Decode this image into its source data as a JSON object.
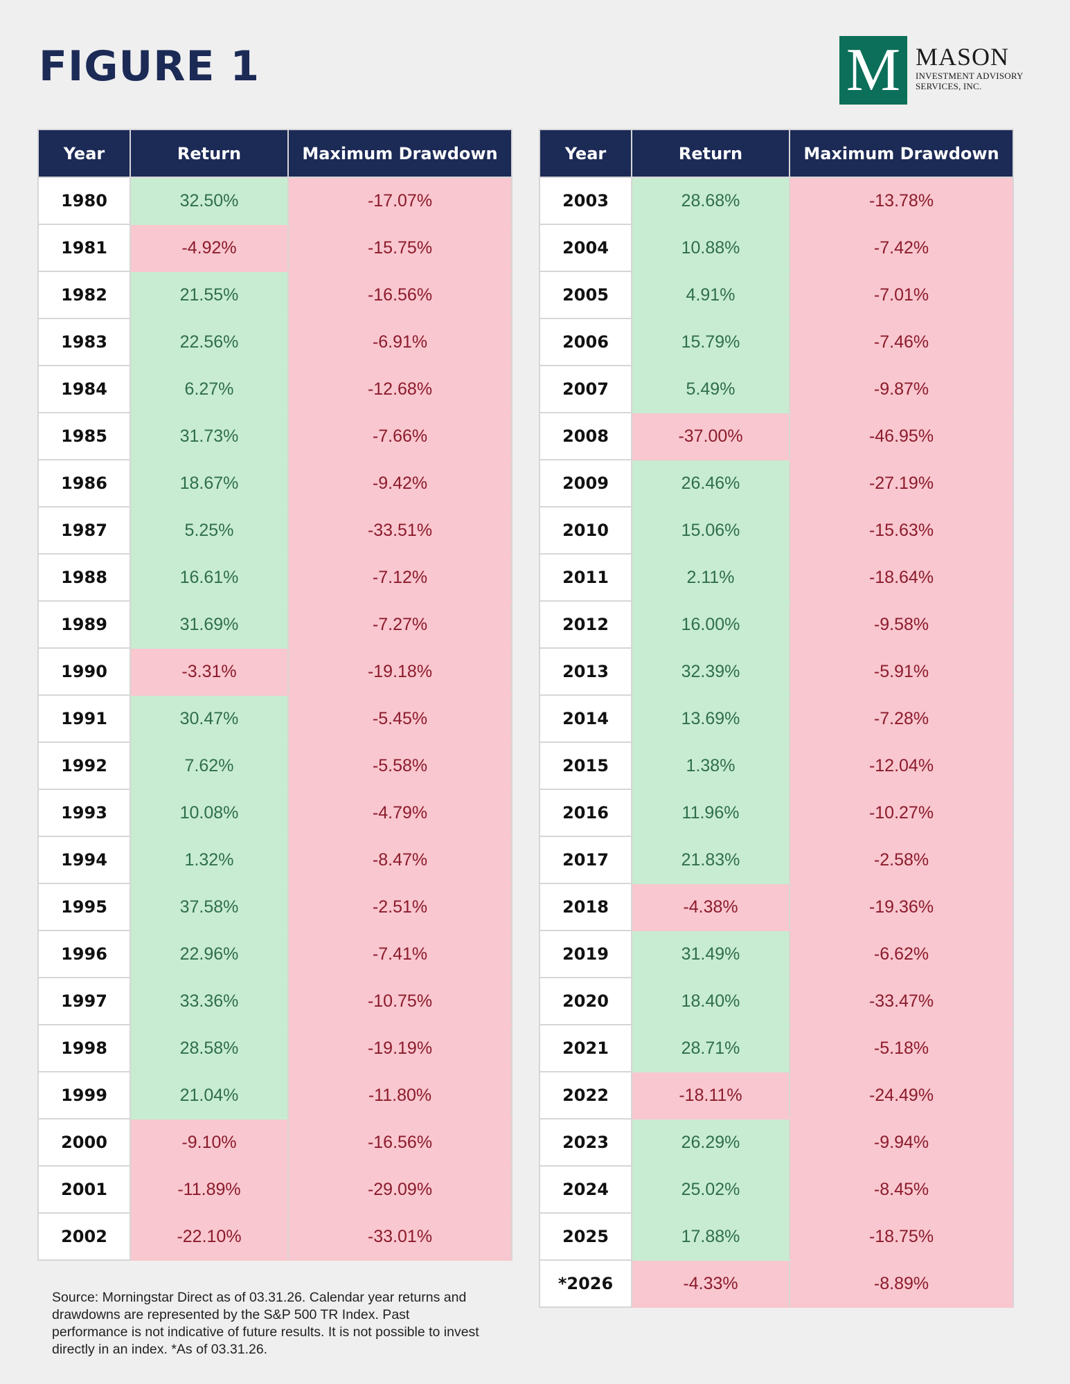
{
  "page": {
    "title": "FIGURE 1",
    "footnote": "Source: Morningstar Direct as of 03.31.26. Calendar year returns and drawdowns are represented by the S&P 500 TR Index. Past performance is not indicative of future results. It is not possible to invest directly in an index. *As of 03.31.26."
  },
  "logo": {
    "mark": "M",
    "name": "MASON",
    "subtitle": "INVESTMENT ADVISORY SERVICES, INC.",
    "brand_color": "#0c6f59"
  },
  "colors": {
    "header_bg": "#1c2a56",
    "positive_bg": "#c8ecd1",
    "negative_bg": "#f9c7cf",
    "positive_text": "#2f6e4b",
    "negative_text": "#8b1b2c"
  },
  "chart_data": {
    "type": "table",
    "columns": [
      "Year",
      "Return",
      "Maximum Drawdown"
    ],
    "tables": [
      {
        "rows": [
          [
            "1980",
            "32.50%",
            "-17.07%"
          ],
          [
            "1981",
            "-4.92%",
            "-15.75%"
          ],
          [
            "1982",
            "21.55%",
            "-16.56%"
          ],
          [
            "1983",
            "22.56%",
            "-6.91%"
          ],
          [
            "1984",
            "6.27%",
            "-12.68%"
          ],
          [
            "1985",
            "31.73%",
            "-7.66%"
          ],
          [
            "1986",
            "18.67%",
            "-9.42%"
          ],
          [
            "1987",
            "5.25%",
            "-33.51%"
          ],
          [
            "1988",
            "16.61%",
            "-7.12%"
          ],
          [
            "1989",
            "31.69%",
            "-7.27%"
          ],
          [
            "1990",
            "-3.31%",
            "-19.18%"
          ],
          [
            "1991",
            "30.47%",
            "-5.45%"
          ],
          [
            "1992",
            "7.62%",
            "-5.58%"
          ],
          [
            "1993",
            "10.08%",
            "-4.79%"
          ],
          [
            "1994",
            "1.32%",
            "-8.47%"
          ],
          [
            "1995",
            "37.58%",
            "-2.51%"
          ],
          [
            "1996",
            "22.96%",
            "-7.41%"
          ],
          [
            "1997",
            "33.36%",
            "-10.75%"
          ],
          [
            "1998",
            "28.58%",
            "-19.19%"
          ],
          [
            "1999",
            "21.04%",
            "-11.80%"
          ],
          [
            "2000",
            "-9.10%",
            "-16.56%"
          ],
          [
            "2001",
            "-11.89%",
            "-29.09%"
          ],
          [
            "2002",
            "-22.10%",
            "-33.01%"
          ]
        ]
      },
      {
        "rows": [
          [
            "2003",
            "28.68%",
            "-13.78%"
          ],
          [
            "2004",
            "10.88%",
            "-7.42%"
          ],
          [
            "2005",
            "4.91%",
            "-7.01%"
          ],
          [
            "2006",
            "15.79%",
            "-7.46%"
          ],
          [
            "2007",
            "5.49%",
            "-9.87%"
          ],
          [
            "2008",
            "-37.00%",
            "-46.95%"
          ],
          [
            "2009",
            "26.46%",
            "-27.19%"
          ],
          [
            "2010",
            "15.06%",
            "-15.63%"
          ],
          [
            "2011",
            "2.11%",
            "-18.64%"
          ],
          [
            "2012",
            "16.00%",
            "-9.58%"
          ],
          [
            "2013",
            "32.39%",
            "-5.91%"
          ],
          [
            "2014",
            "13.69%",
            "-7.28%"
          ],
          [
            "2015",
            "1.38%",
            "-12.04%"
          ],
          [
            "2016",
            "11.96%",
            "-10.27%"
          ],
          [
            "2017",
            "21.83%",
            "-2.58%"
          ],
          [
            "2018",
            "-4.38%",
            "-19.36%"
          ],
          [
            "2019",
            "31.49%",
            "-6.62%"
          ],
          [
            "2020",
            "18.40%",
            "-33.47%"
          ],
          [
            "2021",
            "28.71%",
            "-5.18%"
          ],
          [
            "2022",
            "-18.11%",
            "-24.49%"
          ],
          [
            "2023",
            "26.29%",
            "-9.94%"
          ],
          [
            "2024",
            "25.02%",
            "-8.45%"
          ],
          [
            "2025",
            "17.88%",
            "-18.75%"
          ],
          [
            "*2026",
            "-4.33%",
            "-8.89%"
          ]
        ]
      }
    ]
  }
}
